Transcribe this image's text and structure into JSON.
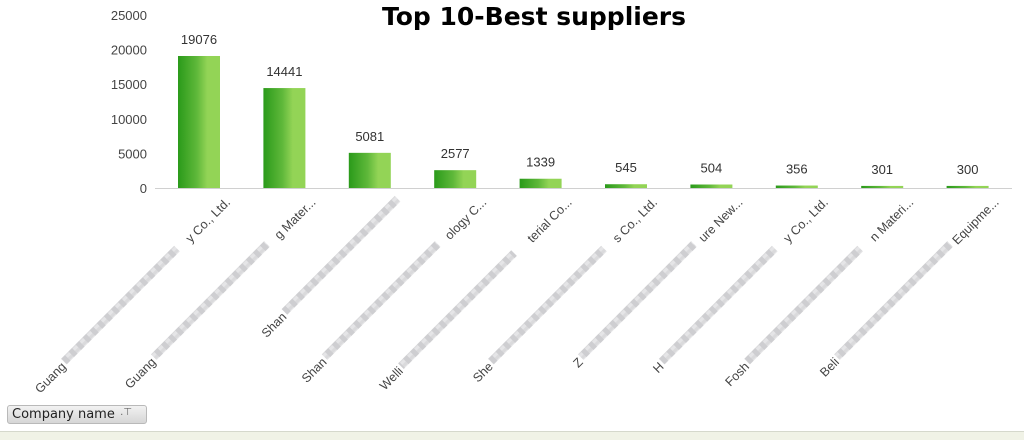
{
  "chart_data": {
    "type": "bar",
    "title": "Top 10-Best suppliers",
    "categories": [
      {
        "prefix": "Guang",
        "suffix": "y Co., Ltd."
      },
      {
        "prefix": "Guang",
        "suffix": "g Mater..."
      },
      {
        "prefix": "Shan",
        "suffix": ""
      },
      {
        "prefix": "Shan",
        "suffix": "ology C..."
      },
      {
        "prefix": "Welli",
        "suffix": "terial Co..."
      },
      {
        "prefix": "She",
        "suffix": "s Co., Ltd."
      },
      {
        "prefix": "Z",
        "suffix": "ure New..."
      },
      {
        "prefix": "H",
        "suffix": "y Co., Ltd."
      },
      {
        "prefix": "Fosh",
        "suffix": "n Materi..."
      },
      {
        "prefix": "Beli",
        "suffix": "Equipme..."
      }
    ],
    "values": [
      19076,
      14441,
      5081,
      2577,
      1339,
      545,
      504,
      356,
      301,
      300
    ],
    "ylim": [
      0,
      25000
    ],
    "yticks": [
      0,
      5000,
      10000,
      15000,
      20000,
      25000
    ],
    "grid": false,
    "legend": "none",
    "data_labels": true,
    "bar_gradient": [
      "#2a9a1a",
      "#5fb83a",
      "#93d456"
    ]
  },
  "field_button": {
    "label": "Company name",
    "icon": "filter-icon"
  }
}
